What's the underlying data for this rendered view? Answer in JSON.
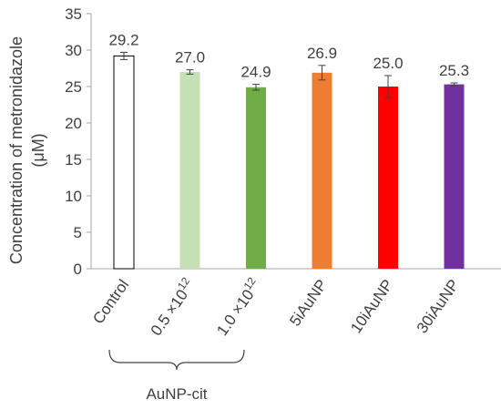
{
  "chart_data": {
    "type": "bar",
    "ylabel_line1": "Concentration of metronidazole",
    "ylabel_line2": "(μM)",
    "ylim": [
      0,
      35
    ],
    "yticks": [
      0,
      5,
      10,
      15,
      20,
      25,
      30,
      35
    ],
    "grid": false,
    "categories": [
      {
        "label": "Control"
      },
      {
        "base": "0.5 ×10",
        "sup": "12"
      },
      {
        "base": "1.0 ×10",
        "sup": "12"
      },
      {
        "label": "5iAuNP"
      },
      {
        "label": "10iAuNP"
      },
      {
        "label": "30iAuNP"
      }
    ],
    "values": [
      29.2,
      27.0,
      24.9,
      26.9,
      25.0,
      25.3
    ],
    "value_labels": [
      "29.2",
      "27.0",
      "24.9",
      "26.9",
      "25.0",
      "25.3"
    ],
    "errors": [
      0.5,
      0.3,
      0.4,
      1.0,
      1.5,
      0.2
    ],
    "colors": [
      "#ffffff",
      "#c5e0b4",
      "#70ad47",
      "#ed7d31",
      "#ff0000",
      "#7030a0"
    ],
    "group_brackets": [
      {
        "label": "AuNP-cit",
        "from": 1,
        "to": 2
      }
    ]
  }
}
